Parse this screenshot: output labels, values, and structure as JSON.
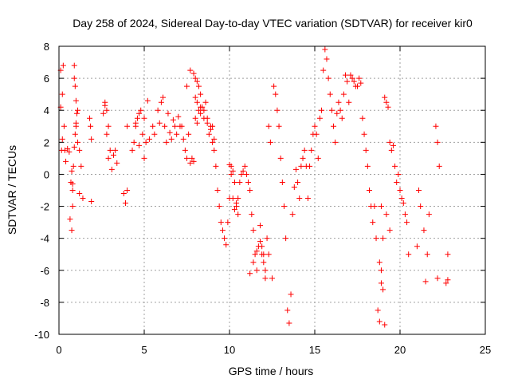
{
  "chart_data": {
    "type": "scatter",
    "title": "Day 258 of 2024, Sidereal Day-to-day VTEC variation (SDTVAR) for receiver kir0",
    "xlabel": "GPS time / hours",
    "ylabel": "SDTVAR / TECUs",
    "xlim": [
      0,
      25
    ],
    "ylim": [
      -10,
      8
    ],
    "xticks": [
      0,
      5,
      10,
      15,
      20,
      25
    ],
    "yticks": [
      -10,
      -8,
      -6,
      -4,
      -2,
      0,
      2,
      4,
      6,
      8
    ],
    "grid": true,
    "marker": "+",
    "series": [
      {
        "name": "SDTVAR",
        "color": "#ff0000",
        "x": [
          0.1,
          0.1,
          0.15,
          0.2,
          0.2,
          0.25,
          0.3,
          0.35,
          0.4,
          0.5,
          0.6,
          0.65,
          0.7,
          0.75,
          0.8,
          0.85,
          0.9,
          0.95,
          1.0,
          1.05,
          1.1,
          0.9,
          0.9,
          0.95,
          1.0,
          1.0,
          1.1,
          0.8,
          0.75,
          0.8,
          1.2,
          1.2,
          1.3,
          1.4,
          1.8,
          1.85,
          1.9,
          1.9,
          2.6,
          2.7,
          2.7,
          2.8,
          2.8,
          2.9,
          2.9,
          3.0,
          3.1,
          3.2,
          3.3,
          3.4,
          3.8,
          3.9,
          4.0,
          4.0,
          4.3,
          4.4,
          4.5,
          4.6,
          4.7,
          4.8,
          4.9,
          5.0,
          5.1,
          5.2,
          5.3,
          4.5,
          4.7,
          5.0,
          5.5,
          5.6,
          5.8,
          5.9,
          6.0,
          6.1,
          6.2,
          6.3,
          6.4,
          6.5,
          6.6,
          6.7,
          6.8,
          6.9,
          7.0,
          7.1,
          7.2,
          7.3,
          7.4,
          7.5,
          7.6,
          7.7,
          7.8,
          7.9,
          8.0,
          8.1,
          8.2,
          8.3,
          8.4,
          8.5,
          8.6,
          8.7,
          8.8,
          8.9,
          9.0,
          9.1,
          7.5,
          7.7,
          7.9,
          8.0,
          8.1,
          8.2,
          8.3,
          8.0,
          8.1,
          8.3,
          8.5,
          8.7,
          8.9,
          9.0,
          9.1,
          9.2,
          9.3,
          9.4,
          9.5,
          9.6,
          9.7,
          9.8,
          9.9,
          10.0,
          10.1,
          10.2,
          10.3,
          10.4,
          10.5,
          10.0,
          10.1,
          10.2,
          10.3,
          10.4,
          10.5,
          10.6,
          10.7,
          10.8,
          10.9,
          11.0,
          11.1,
          11.2,
          11.3,
          11.4,
          11.5,
          11.6,
          11.7,
          11.8,
          11.9,
          12.0,
          12.1,
          12.2,
          12.3,
          12.4,
          11.2,
          11.4,
          11.6,
          11.8,
          11.9,
          12.0,
          12.1,
          12.3,
          12.5,
          12.6,
          12.7,
          12.8,
          12.9,
          13.0,
          13.1,
          13.2,
          13.3,
          13.4,
          13.5,
          13.6,
          13.7,
          13.8,
          13.9,
          14.0,
          14.1,
          14.2,
          14.3,
          14.4,
          14.5,
          14.6,
          14.7,
          14.8,
          14.9,
          15.0,
          15.1,
          15.2,
          15.3,
          15.4,
          15.5,
          15.6,
          15.7,
          15.8,
          15.9,
          16.0,
          16.1,
          16.2,
          16.3,
          16.4,
          16.5,
          16.6,
          16.7,
          16.8,
          16.9,
          17.0,
          17.1,
          17.2,
          17.3,
          17.4,
          17.5,
          17.6,
          17.7,
          17.8,
          17.9,
          18.0,
          18.1,
          18.2,
          18.3,
          18.4,
          18.5,
          18.6,
          18.7,
          18.8,
          18.9,
          19.0,
          19.1,
          19.2,
          19.3,
          19.4,
          19.5,
          19.6,
          19.7,
          19.8,
          19.9,
          20.0,
          20.1,
          20.2,
          20.3,
          20.4,
          20.5,
          18.9,
          19.0,
          19.1,
          18.8,
          18.9,
          19.2,
          19.4,
          21.0,
          21.1,
          21.2,
          21.4,
          21.5,
          21.6,
          21.7,
          22.1,
          22.2,
          22.3,
          22.2,
          22.7,
          22.8,
          22.8
        ],
        "y": [
          6.5,
          4.2,
          1.5,
          2.2,
          5.0,
          6.8,
          3.0,
          1.5,
          0.8,
          1.6,
          1.4,
          -2.8,
          -0.5,
          -3.5,
          -1.0,
          0.5,
          1.7,
          2.5,
          3.2,
          3.8,
          4.0,
          6.0,
          6.8,
          5.5,
          4.6,
          3.0,
          2.0,
          -2.0,
          0.2,
          -0.6,
          1.5,
          -1.2,
          0.5,
          -1.5,
          3.5,
          3.0,
          -1.7,
          2.2,
          3.8,
          4.5,
          4.3,
          4.0,
          2.5,
          1.0,
          3.0,
          1.5,
          0.3,
          1.2,
          1.5,
          0.7,
          -1.2,
          -1.8,
          -1.0,
          3.0,
          1.5,
          2.0,
          3.0,
          3.5,
          3.8,
          4.0,
          2.5,
          1.0,
          2.0,
          4.6,
          2.2,
          3.2,
          1.8,
          3.5,
          3.0,
          2.5,
          4.0,
          3.2,
          4.5,
          4.8,
          3.0,
          2.0,
          3.8,
          2.6,
          2.2,
          3.4,
          3.0,
          2.5,
          3.6,
          3.0,
          3.0,
          2.2,
          1.5,
          1.0,
          2.5,
          0.7,
          1.0,
          0.8,
          3.5,
          3.2,
          4.0,
          3.8,
          4.2,
          3.5,
          4.5,
          3.2,
          2.5,
          2.8,
          3.0,
          2.2,
          5.5,
          6.5,
          6.3,
          6.0,
          5.8,
          5.5,
          5.0,
          4.8,
          4.5,
          4.2,
          4.0,
          3.5,
          3.0,
          2.0,
          1.5,
          0.5,
          -1.0,
          -2.0,
          -3.0,
          -3.5,
          -4.0,
          -4.4,
          -3.0,
          -1.5,
          0.5,
          0.2,
          -0.5,
          -1.8,
          -2.5,
          0.6,
          0.0,
          -1.5,
          -2.2,
          -2.0,
          -1.5,
          -0.5,
          0.0,
          0.2,
          0.5,
          0.0,
          -0.5,
          -1.0,
          -2.5,
          -3.5,
          -5.0,
          -6.0,
          -4.5,
          -4.2,
          -5.0,
          -5.5,
          -6.0,
          -4.0,
          3.0,
          2.0,
          -6.2,
          -5.5,
          -4.8,
          -3.2,
          -4.5,
          -5.0,
          -6.5,
          -5.0,
          -6.5,
          5.5,
          5.0,
          4.0,
          3.0,
          1.0,
          -0.5,
          -2.0,
          -4.0,
          -8.5,
          -9.3,
          -7.5,
          -2.5,
          -0.8,
          0.3,
          -0.5,
          -1.5,
          0.5,
          1.0,
          1.5,
          0.5,
          -1.5,
          0.5,
          1.5,
          2.5,
          3.0,
          2.5,
          1.0,
          3.5,
          4.0,
          6.5,
          7.8,
          7.2,
          6.0,
          5.0,
          4.0,
          3.0,
          2.0,
          3.8,
          4.5,
          4.0,
          3.5,
          5.0,
          6.2,
          5.8,
          4.5,
          6.2,
          6.0,
          5.8,
          5.5,
          5.5,
          6.0,
          5.7,
          3.5,
          2.5,
          1.5,
          0.5,
          -1.0,
          -2.0,
          -3.0,
          -2.0,
          -4.0,
          -8.5,
          -9.2,
          -6.8,
          -4.0,
          4.8,
          4.5,
          4.2,
          2.0,
          1.5,
          1.8,
          0.5,
          -0.5,
          0.0,
          -1.0,
          -1.5,
          -1.8,
          -2.5,
          -3.0,
          -5.0,
          -6.0,
          -7.2,
          -9.4,
          -5.5,
          -2.0,
          -2.5,
          -3.5,
          -4.5,
          -1.0,
          -2.0,
          -3.5,
          -6.7,
          -5.0,
          -2.5,
          3.0,
          2.0,
          0.5,
          -6.5,
          -6.8,
          -5.0,
          -6.6
        ],
        "note": "Dense red '+' markers; values are a representative sample estimated from the plot."
      }
    ]
  }
}
